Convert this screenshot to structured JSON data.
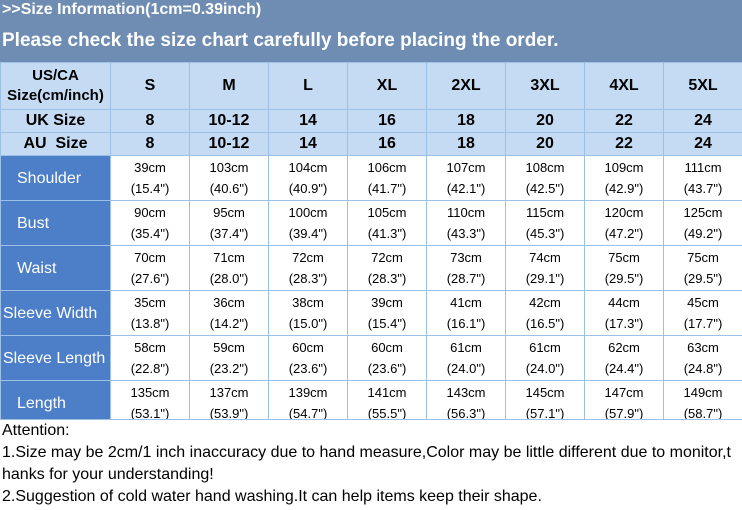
{
  "header": {
    "info_title": ">>Size Information(1cm=0.39inch)",
    "notice": "Please check the size chart carefully before placing the order."
  },
  "table": {
    "corner_label_line1": "US/CA",
    "corner_label_line2": "Size(cm/inch)",
    "sizes": [
      "S",
      "M",
      "L",
      "XL",
      "2XL",
      "3XL",
      "4XL",
      "5XL"
    ],
    "uk_label": "UK Size",
    "uk_values": [
      "8",
      "10-12",
      "14",
      "16",
      "18",
      "20",
      "22",
      "24"
    ],
    "au_label": "AU  Size",
    "au_values": [
      "8",
      "10-12",
      "14",
      "16",
      "18",
      "20",
      "22",
      "24"
    ],
    "rows": [
      {
        "label": "Shoulder",
        "cm": [
          "39cm",
          "103cm",
          "104cm",
          "106cm",
          "107cm",
          "108cm",
          "109cm",
          "111cm"
        ],
        "inch": [
          "(15.4\")",
          "(40.6\")",
          "(40.9\")",
          "(41.7\")",
          "(42.1\")",
          "(42.5\")",
          "(42.9\")",
          "(43.7\")"
        ]
      },
      {
        "label": "Bust",
        "cm": [
          "90cm",
          "95cm",
          "100cm",
          "105cm",
          "110cm",
          "115cm",
          "120cm",
          "125cm"
        ],
        "inch": [
          "(35.4\")",
          "(37.4\")",
          "(39.4\")",
          "(41.3\")",
          "(43.3\")",
          "(45.3\")",
          "(47.2\")",
          "(49.2\")"
        ]
      },
      {
        "label": "Waist",
        "cm": [
          "70cm",
          "71cm",
          "72cm",
          "72cm",
          "73cm",
          "74cm",
          "75cm",
          "75cm"
        ],
        "inch": [
          "(27.6\")",
          "(28.0\")",
          "(28.3\")",
          "(28.3\")",
          "(28.7\")",
          "(29.1\")",
          "(29.5\")",
          "(29.5\")"
        ]
      },
      {
        "label": "Sleeve Width",
        "cm": [
          "35cm",
          "36cm",
          "38cm",
          "39cm",
          "41cm",
          "42cm",
          "44cm",
          "45cm"
        ],
        "inch": [
          "(13.8\")",
          "(14.2\")",
          "(15.0\")",
          "(15.4\")",
          "(16.1\")",
          "(16.5\")",
          "(17.3\")",
          "(17.7\")"
        ]
      },
      {
        "label": "Sleeve Length",
        "cm": [
          "58cm",
          "59cm",
          "60cm",
          "60cm",
          "61cm",
          "61cm",
          "62cm",
          "63cm"
        ],
        "inch": [
          "(22.8\")",
          "(23.2\")",
          "(23.6\")",
          "(23.6\")",
          "(24.0\")",
          "(24.0\")",
          "(24.4\")",
          "(24.8\")"
        ]
      },
      {
        "label": "Length",
        "cm": [
          "135cm",
          "137cm",
          "139cm",
          "141cm",
          "143cm",
          "145cm",
          "147cm",
          "149cm"
        ],
        "inch": [
          "(53.1\")",
          "(53.9\")",
          "(54.7\")",
          "(55.5\")",
          "(56.3\")",
          "(57.1\")",
          "(57.9\")",
          "(58.7\")"
        ]
      }
    ]
  },
  "attention": {
    "title": "Attention:",
    "line1": "1.Size may be 2cm/1 inch inaccuracy due to hand measure,Color may be little different due to monitor,t",
    "line2": "hanks for your understanding!",
    "line3": "2.Suggestion of cold water hand washing.It can help items keep their shape."
  }
}
